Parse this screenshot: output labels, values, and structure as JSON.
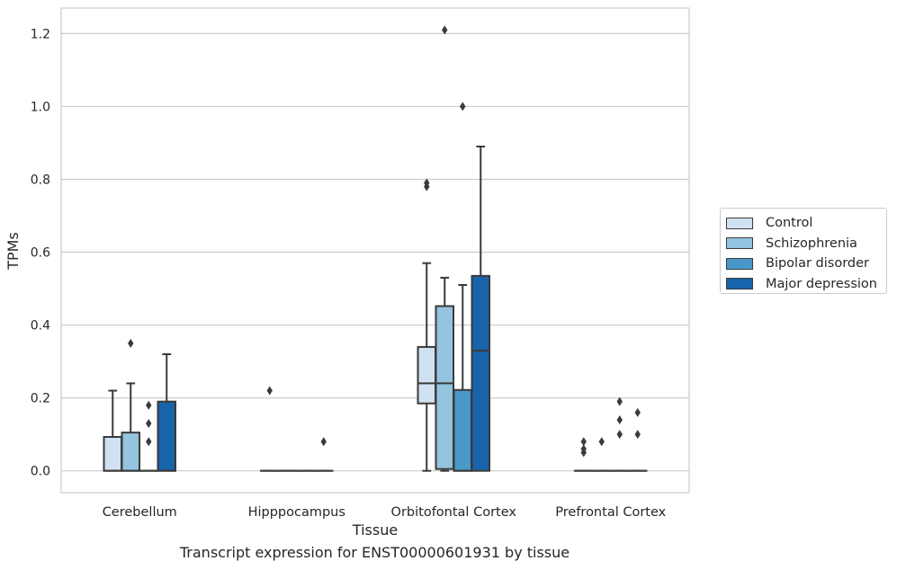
{
  "chart_data": {
    "type": "box",
    "title": "",
    "xlabel": "Tissue",
    "ylabel": "TPMs",
    "caption": "Transcript expression for ENST00000601931 by tissue",
    "ylim": [
      -0.06,
      1.27
    ],
    "yticks": [
      0.0,
      0.2,
      0.4,
      0.6,
      0.8,
      1.0,
      1.2
    ],
    "ytick_labels": [
      "0.0",
      "0.2",
      "0.4",
      "0.6",
      "0.8",
      "1.0",
      "1.2"
    ],
    "grid": "horizontal",
    "legend_position": "right",
    "categories": [
      "Cerebellum",
      "Hipppocampus",
      "Orbitofontal Cortex",
      "Prefrontal Cortex"
    ],
    "series": [
      {
        "name": "Control",
        "color": "#d0e1f2",
        "boxes": [
          {
            "q1": 0.0,
            "median": 0.0,
            "q3": 0.093,
            "whisker_low": 0.0,
            "whisker_high": 0.22,
            "outliers": []
          },
          {
            "q1": 0.0,
            "median": 0.0,
            "q3": 0.0,
            "whisker_low": 0.0,
            "whisker_high": 0.0,
            "outliers": [
              0.22
            ]
          },
          {
            "q1": 0.185,
            "median": 0.24,
            "q3": 0.34,
            "whisker_low": 0.0,
            "whisker_high": 0.57,
            "outliers": [
              0.78,
              0.79
            ]
          },
          {
            "q1": 0.0,
            "median": 0.0,
            "q3": 0.0,
            "whisker_low": 0.0,
            "whisker_high": 0.0,
            "outliers": [
              0.05,
              0.06,
              0.08
            ]
          }
        ]
      },
      {
        "name": "Schizophrenia",
        "color": "#94c4df",
        "boxes": [
          {
            "q1": 0.0,
            "median": 0.0,
            "q3": 0.105,
            "whisker_low": 0.0,
            "whisker_high": 0.24,
            "outliers": [
              0.35
            ]
          },
          {
            "q1": 0.0,
            "median": 0.0,
            "q3": 0.0,
            "whisker_low": 0.0,
            "whisker_high": 0.0,
            "outliers": []
          },
          {
            "q1": 0.005,
            "median": 0.24,
            "q3": 0.452,
            "whisker_low": 0.0,
            "whisker_high": 0.53,
            "outliers": [
              1.21
            ]
          },
          {
            "q1": 0.0,
            "median": 0.0,
            "q3": 0.0,
            "whisker_low": 0.0,
            "whisker_high": 0.0,
            "outliers": [
              0.08
            ]
          }
        ]
      },
      {
        "name": "Bipolar disorder",
        "color": "#4a98c9",
        "boxes": [
          {
            "q1": 0.0,
            "median": 0.0,
            "q3": 0.0,
            "whisker_low": 0.0,
            "whisker_high": 0.0,
            "outliers": [
              0.08,
              0.13,
              0.18
            ]
          },
          {
            "q1": 0.0,
            "median": 0.0,
            "q3": 0.0,
            "whisker_low": 0.0,
            "whisker_high": 0.0,
            "outliers": []
          },
          {
            "q1": 0.0,
            "median": 0.0,
            "q3": 0.222,
            "whisker_low": 0.0,
            "whisker_high": 0.51,
            "outliers": [
              1.0
            ]
          },
          {
            "q1": 0.0,
            "median": 0.0,
            "q3": 0.0,
            "whisker_low": 0.0,
            "whisker_high": 0.0,
            "outliers": [
              0.1,
              0.14,
              0.19
            ]
          }
        ]
      },
      {
        "name": "Major depression",
        "color": "#1764ab",
        "boxes": [
          {
            "q1": 0.0,
            "median": 0.0,
            "q3": 0.19,
            "whisker_low": 0.0,
            "whisker_high": 0.32,
            "outliers": []
          },
          {
            "q1": 0.0,
            "median": 0.0,
            "q3": 0.0,
            "whisker_low": 0.0,
            "whisker_high": 0.0,
            "outliers": [
              0.08
            ]
          },
          {
            "q1": 0.0,
            "median": 0.33,
            "q3": 0.535,
            "whisker_low": 0.0,
            "whisker_high": 0.89,
            "outliers": []
          },
          {
            "q1": 0.0,
            "median": 0.0,
            "q3": 0.0,
            "whisker_low": 0.0,
            "whisker_high": 0.0,
            "outliers": [
              0.1,
              0.16
            ]
          }
        ]
      }
    ]
  }
}
